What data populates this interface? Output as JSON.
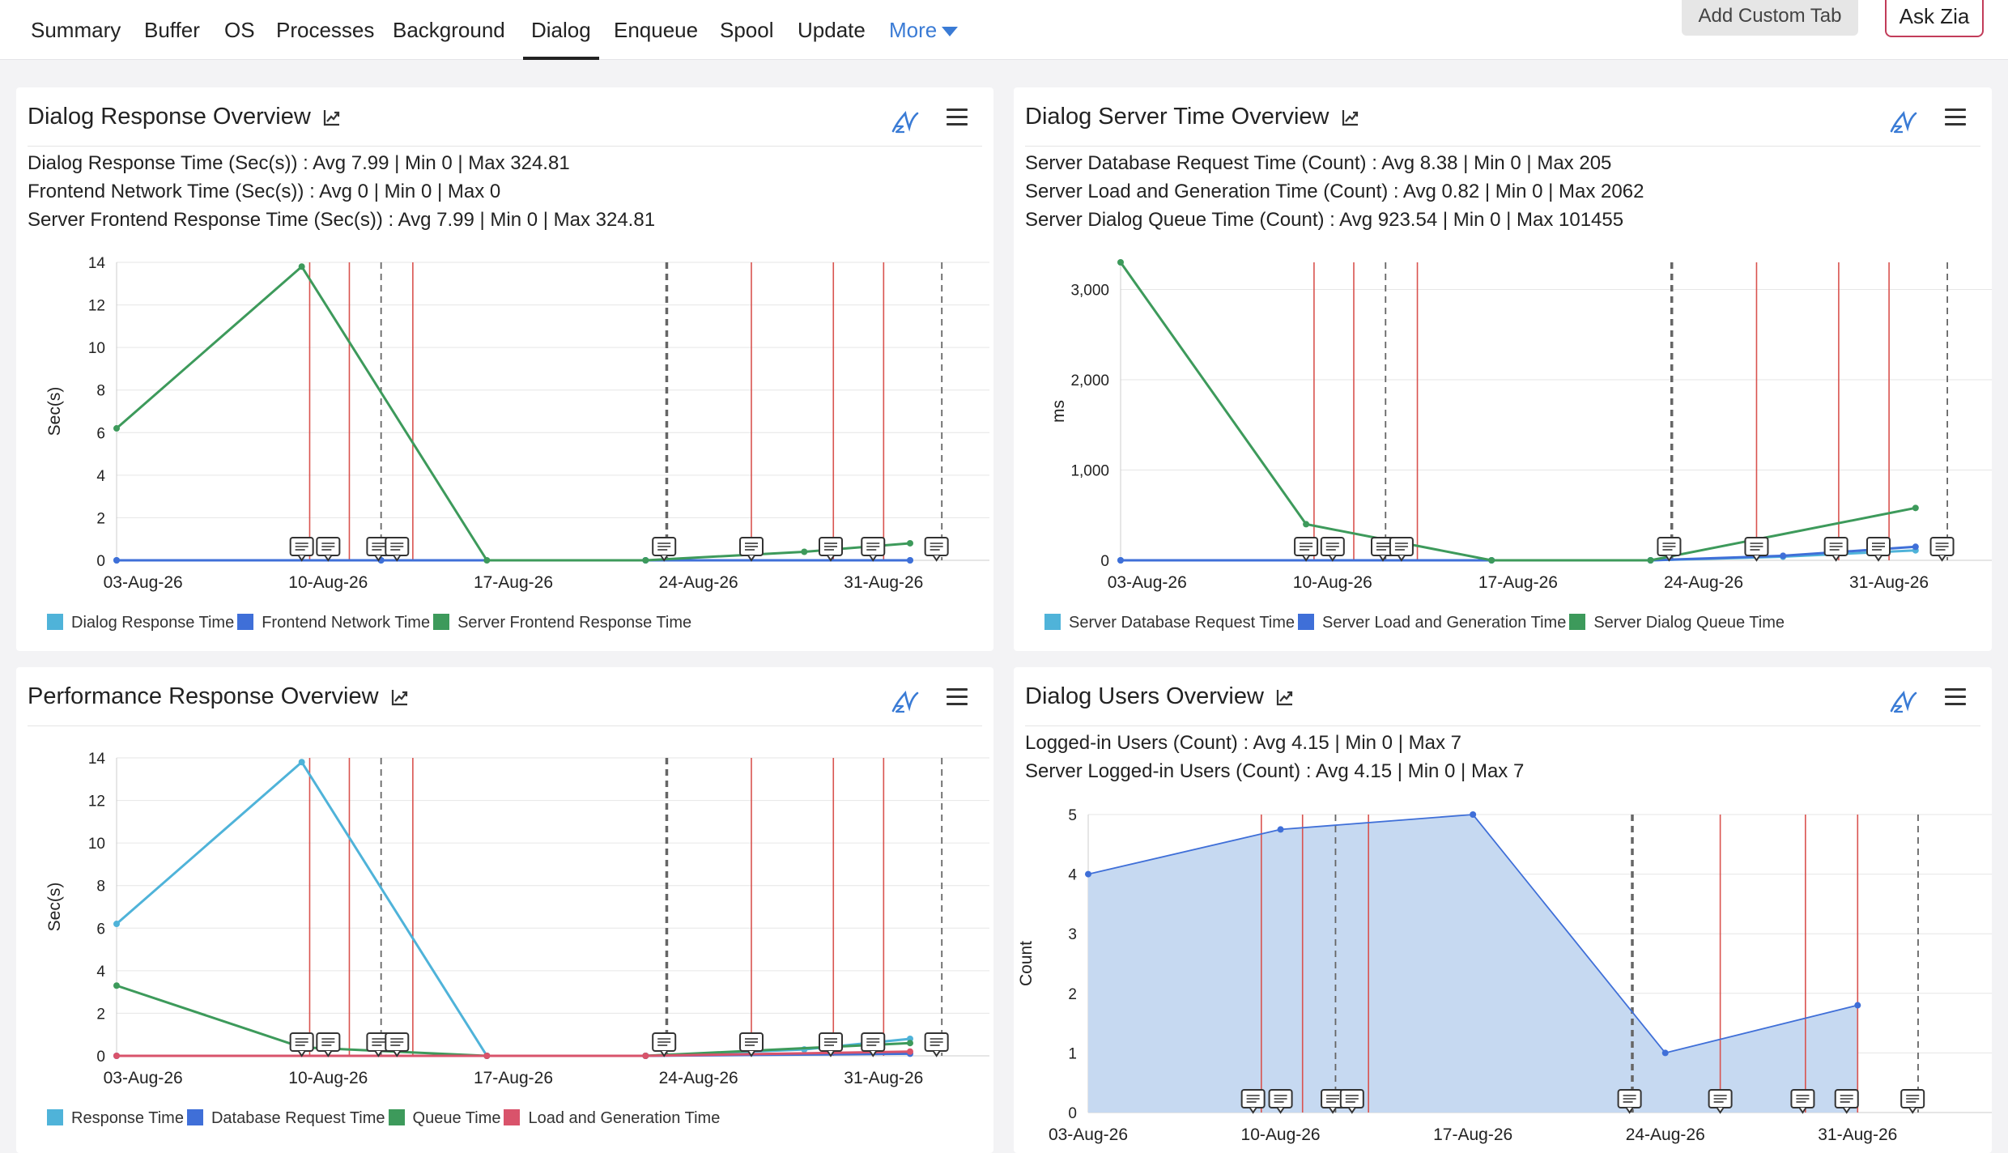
{
  "nav": {
    "tabs": [
      {
        "label": "Summary"
      },
      {
        "label": "Buffer"
      },
      {
        "label": "OS"
      },
      {
        "label": "Processes"
      },
      {
        "label": "Background"
      },
      {
        "label": "Dialog",
        "active": true
      },
      {
        "label": "Enqueue"
      },
      {
        "label": "Spool"
      },
      {
        "label": "Update"
      }
    ],
    "more_label": "More",
    "add_custom_tab_label": "Add Custom Tab",
    "ask_zia_label": "Ask Zia"
  },
  "date_ticks": [
    "03-Aug-26",
    "10-Aug-26",
    "17-Aug-26",
    "24-Aug-26",
    "31-Aug-26"
  ],
  "cards": [
    {
      "title": "Dialog Response Overview",
      "stats": [
        "Dialog Response Time (Sec(s)) :  Avg 7.99   |  Min 0   |  Max 324.81",
        "Frontend Network Time (Sec(s)) :  Avg 0   |  Min 0   |  Max 0",
        "Server Frontend Response Time (Sec(s)) :  Avg 7.99   |  Min 0   |  Max 324.81"
      ],
      "chart_data": {
        "type": "line",
        "ylabel": "Sec(s)",
        "ylim": [
          0,
          14
        ],
        "yticks": [
          0,
          2,
          4,
          6,
          8,
          10,
          12,
          14
        ],
        "xlim": [
          "2026-08-02",
          "2026-09-04"
        ],
        "series": [
          {
            "name": "Dialog Response Time",
            "color": "#4fb3d9",
            "x": [
              "2026-08-02",
              "2026-08-12",
              "2026-08-22",
              "2026-09-01"
            ],
            "values": [
              0,
              0,
              0,
              0
            ]
          },
          {
            "name": "Frontend Network Time",
            "color": "#3f6fd8",
            "x": [
              "2026-08-02",
              "2026-08-12",
              "2026-08-22",
              "2026-09-01"
            ],
            "values": [
              0,
              0,
              0,
              0
            ]
          },
          {
            "name": "Server Frontend Response Time",
            "color": "#3d9a5b",
            "x": [
              "2026-08-02",
              "2026-08-09",
              "2026-08-16",
              "2026-08-22",
              "2026-08-28",
              "2026-09-01"
            ],
            "values": [
              6.2,
              13.8,
              0,
              0,
              0.4,
              0.8
            ]
          }
        ]
      }
    },
    {
      "title": "Dialog Server Time Overview",
      "stats": [
        "Server Database Request Time (Count) :  Avg 8.38   |  Min 0   |  Max 205",
        "Server Load and Generation Time (Count) :  Avg 0.82   |  Min 0   |  Max 2062",
        "Server Dialog Queue Time (Count) :  Avg 923.54   |  Min 0   |  Max 101455"
      ],
      "chart_data": {
        "type": "line",
        "ylabel": "ms",
        "ylim": [
          0,
          3300
        ],
        "yticks": [
          0,
          1000,
          2000,
          3000
        ],
        "ytick_labels": [
          "0",
          "1,000",
          "2,000",
          "3,000"
        ],
        "xlim": [
          "2026-08-02",
          "2026-09-04"
        ],
        "series": [
          {
            "name": "Server Database Request Time",
            "color": "#4fb3d9",
            "x": [
              "2026-08-02",
              "2026-08-16",
              "2026-08-22",
              "2026-08-27",
              "2026-09-01"
            ],
            "values": [
              0,
              0,
              0,
              40,
              110
            ]
          },
          {
            "name": "Server Load and Generation Time",
            "color": "#3f6fd8",
            "x": [
              "2026-08-02",
              "2026-08-16",
              "2026-08-22",
              "2026-08-27",
              "2026-09-01"
            ],
            "values": [
              0,
              0,
              0,
              50,
              150
            ]
          },
          {
            "name": "Server Dialog Queue Time",
            "color": "#3d9a5b",
            "x": [
              "2026-08-02",
              "2026-08-09",
              "2026-08-16",
              "2026-08-22",
              "2026-09-01"
            ],
            "values": [
              3300,
              400,
              0,
              0,
              580
            ]
          }
        ]
      }
    },
    {
      "title": "Performance Response Overview",
      "stats": [],
      "chart_data": {
        "type": "line",
        "ylabel": "Sec(s)",
        "ylim": [
          0,
          14
        ],
        "yticks": [
          0,
          2,
          4,
          6,
          8,
          10,
          12,
          14
        ],
        "xlim": [
          "2026-08-02",
          "2026-09-04"
        ],
        "series": [
          {
            "name": "Response Time",
            "color": "#4fb3d9",
            "x": [
              "2026-08-02",
              "2026-08-09",
              "2026-08-16",
              "2026-08-22",
              "2026-08-28",
              "2026-09-01"
            ],
            "values": [
              6.2,
              13.8,
              0,
              0,
              0.3,
              0.8
            ]
          },
          {
            "name": "Database Request Time",
            "color": "#3f6fd8",
            "x": [
              "2026-08-02",
              "2026-08-16",
              "2026-08-22",
              "2026-09-01"
            ],
            "values": [
              0,
              0,
              0,
              0.1
            ]
          },
          {
            "name": "Queue Time",
            "color": "#3d9a5b",
            "x": [
              "2026-08-02",
              "2026-08-09",
              "2026-08-16",
              "2026-08-22",
              "2026-09-01"
            ],
            "values": [
              3.3,
              0.4,
              0,
              0,
              0.6
            ]
          },
          {
            "name": "Load and Generation Time",
            "color": "#d9536b",
            "x": [
              "2026-08-02",
              "2026-08-16",
              "2026-08-22",
              "2026-09-01"
            ],
            "values": [
              0,
              0,
              0,
              0.2
            ]
          }
        ]
      }
    },
    {
      "title": "Dialog Users Overview",
      "stats": [
        "Logged-in Users (Count) :  Avg 4.15   |  Min 0   |  Max 7",
        "Server Logged-in Users (Count) :  Avg 4.15   |  Min 0   |  Max 7"
      ],
      "chart_data": {
        "type": "area",
        "ylabel": "Count",
        "ylim": [
          0,
          5
        ],
        "yticks": [
          0,
          1,
          2,
          3,
          4,
          5
        ],
        "xlim": [
          "2026-08-03",
          "2026-09-05"
        ],
        "legend": false,
        "series": [
          {
            "color": "#3f6fd8",
            "fill": "#c6d9f1",
            "x": [
              "2026-08-03",
              "2026-08-10",
              "2026-08-17",
              "2026-08-24",
              "2026-08-31"
            ],
            "values": [
              4.0,
              4.75,
              5.0,
              1.0,
              1.8
            ]
          }
        ]
      }
    }
  ]
}
